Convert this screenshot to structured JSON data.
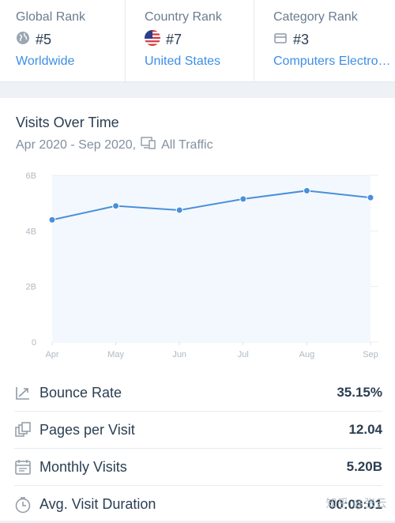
{
  "ranks": [
    {
      "title": "Global Rank",
      "value": "#5",
      "link": "Worldwide",
      "icon": "globe-icon"
    },
    {
      "title": "Country Rank",
      "value": "#7",
      "link": "United States",
      "icon": "us-flag-icon"
    },
    {
      "title": "Category Rank",
      "value": "#3",
      "link": "Computers Electronics and Technology",
      "icon": "category-icon"
    }
  ],
  "visits": {
    "title": "Visits Over Time",
    "date_range": "Apr 2020 - Sep 2020,",
    "traffic_type": "All Traffic"
  },
  "chart_data": {
    "type": "area",
    "categories": [
      "Apr",
      "May",
      "Jun",
      "Jul",
      "Aug",
      "Sep"
    ],
    "values": [
      4.4,
      4.9,
      4.75,
      5.15,
      5.45,
      5.2
    ],
    "y_ticks": [
      "0",
      "2B",
      "4B",
      "6B"
    ],
    "ylim": [
      0,
      6
    ],
    "unit": "B",
    "color": "#4a90d9",
    "fill": "#f3f8fe",
    "grid": true
  },
  "metrics": [
    {
      "label": "Bounce Rate",
      "value": "35.15%",
      "icon": "bounce-rate-icon"
    },
    {
      "label": "Pages per Visit",
      "value": "12.04",
      "icon": "pages-icon"
    },
    {
      "label": "Monthly Visits",
      "value": "5.20B",
      "icon": "calendar-icon"
    },
    {
      "label": "Avg. Visit Duration",
      "value": "00:08:01",
      "icon": "clock-icon"
    }
  ],
  "watermark": "知乎 @张云"
}
